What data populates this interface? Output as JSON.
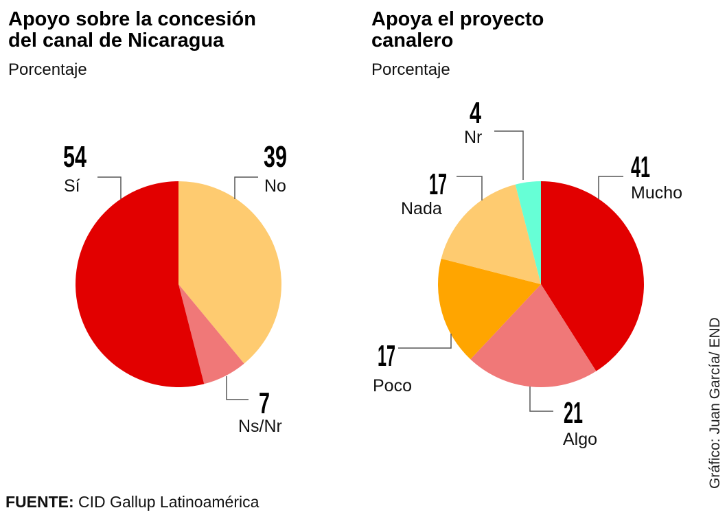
{
  "chart_data": [
    {
      "type": "pie",
      "title": "Apoyo sobre la concesión del canal de Nicaragua",
      "subtitle": "Porcentaje",
      "slices": [
        {
          "label": "No",
          "value": 39,
          "color": "#FECB70"
        },
        {
          "label": "Ns/Nr",
          "value": 7,
          "color": "#F07878"
        },
        {
          "label": "Sí",
          "value": 54,
          "color": "#E20000"
        }
      ]
    },
    {
      "type": "pie",
      "title": "Apoya el proyecto canalero",
      "subtitle": "Porcentaje",
      "slices": [
        {
          "label": "Mucho",
          "value": 41,
          "color": "#E20000"
        },
        {
          "label": "Algo",
          "value": 21,
          "color": "#F07878"
        },
        {
          "label": "Poco",
          "value": 17,
          "color": "#FFA500"
        },
        {
          "label": "Nada",
          "value": 17,
          "color": "#FECB70"
        },
        {
          "label": "Nr",
          "value": 4,
          "color": "#66FFD6"
        }
      ]
    }
  ],
  "left": {
    "title_line1": "Apoyo sobre la concesión",
    "title_line2": "del canal de Nicaragua",
    "subtitle": "Porcentaje"
  },
  "right": {
    "title_line1": "Apoya el proyecto",
    "title_line2": "canalero",
    "subtitle": "Porcentaje"
  },
  "source": {
    "label": "FUENTE:",
    "text": " CID Gallup Latinoamérica"
  },
  "credit": "Gráfico: Juan García/ END"
}
